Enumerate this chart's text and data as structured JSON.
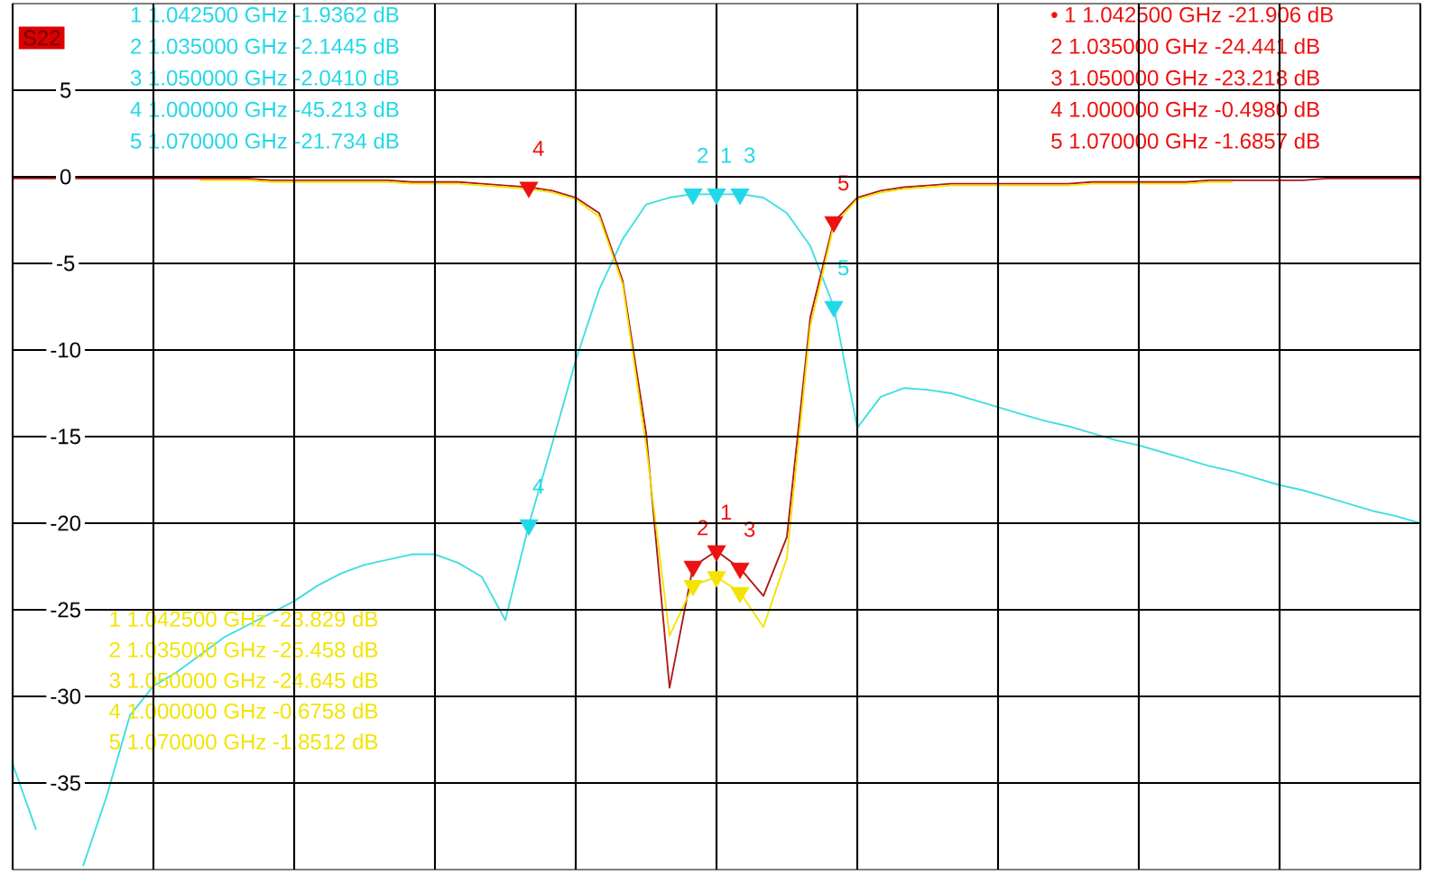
{
  "chart_data": {
    "type": "line",
    "title": "S22",
    "categories": [
      null,
      null,
      null,
      null,
      null,
      null,
      null,
      null,
      null,
      null,
      null,
      null,
      null,
      null,
      null,
      null,
      null,
      null,
      null,
      null,
      null,
      null,
      null,
      null,
      null,
      null,
      null,
      null,
      null,
      null,
      null,
      null,
      null,
      null,
      null,
      null,
      null,
      null,
      null,
      null,
      null,
      null,
      null,
      null,
      null,
      null,
      null,
      null,
      null,
      null,
      null,
      null,
      null,
      null,
      null,
      null,
      null,
      null,
      null,
      null,
      null
    ],
    "series": [
      {
        "color": "#40dede",
        "values": [
          -33.9,
          -37.7,
          null,
          -39.8,
          -35.8,
          -31.1,
          -29.4,
          -28.6,
          -27.6,
          -26.6,
          -25.9,
          -25.2,
          -24.5,
          -23.6,
          -22.9,
          -22.4,
          -22.1,
          -21.8,
          -21.8,
          -22.3,
          -23.1,
          -25.6,
          -20.1,
          -15.4,
          -10.6,
          -6.5,
          -3.6,
          -1.6,
          -1.2,
          -1.0,
          -1.0,
          -1.0,
          -1.2,
          -2.1,
          -4.0,
          -7.5,
          -14.5,
          -12.7,
          -12.2,
          -12.3,
          -12.5,
          -12.9,
          -13.3,
          -13.7,
          -14.1,
          -14.4,
          -14.8,
          -15.2,
          -15.5,
          -15.9,
          -16.3,
          -16.7,
          -17.0,
          -17.4,
          -17.8,
          -18.1,
          -18.5,
          -18.9,
          -19.3,
          -19.6,
          -20.0
        ]
      },
      {
        "color": "#b01818",
        "values": [
          -0.1,
          -0.1,
          -0.1,
          -0.1,
          -0.1,
          -0.1,
          -0.1,
          -0.1,
          -0.1,
          -0.1,
          -0.1,
          -0.2,
          -0.2,
          -0.2,
          -0.2,
          -0.2,
          -0.2,
          -0.3,
          -0.3,
          -0.3,
          -0.4,
          -0.5,
          -0.6,
          -0.8,
          -1.2,
          -2.1,
          -6.0,
          -14.8,
          -29.5,
          -22.5,
          -21.6,
          -22.6,
          -24.2,
          -20.8,
          -8.1,
          -2.6,
          -1.2,
          -0.8,
          -0.6,
          -0.5,
          -0.4,
          -0.4,
          -0.4,
          -0.4,
          -0.4,
          -0.4,
          -0.3,
          -0.3,
          -0.3,
          -0.3,
          -0.3,
          -0.2,
          -0.2,
          -0.2,
          -0.2,
          -0.2,
          -0.1,
          -0.1,
          -0.1,
          -0.1,
          -0.1
        ]
      },
      {
        "color": "#f2e400",
        "values": [
          null,
          null,
          null,
          null,
          null,
          null,
          null,
          null,
          -0.2,
          -0.2,
          -0.2,
          -0.3,
          -0.3,
          -0.3,
          -0.3,
          -0.3,
          -0.3,
          -0.4,
          -0.4,
          -0.4,
          -0.5,
          -0.6,
          -0.7,
          -0.9,
          -1.3,
          -2.3,
          -6.2,
          -15.5,
          -26.5,
          -23.6,
          -23.1,
          -24.0,
          -26.0,
          -22.0,
          -8.6,
          -2.8,
          -1.3,
          -0.9,
          -0.7,
          -0.6,
          -0.5,
          -0.5,
          -0.5,
          -0.5,
          -0.5,
          -0.5,
          -0.4,
          -0.4,
          -0.4,
          -0.4,
          -0.4,
          -0.3,
          -0.3,
          null,
          null,
          null,
          null,
          null,
          null,
          null,
          null
        ]
      },
      {
        "type": "scatter",
        "marker": "triangle",
        "color": "#22d8e8",
        "values": [
          null,
          null,
          null,
          null,
          null,
          null,
          null,
          null,
          null,
          null,
          null,
          null,
          null,
          null,
          null,
          null,
          null,
          null,
          null,
          null,
          null,
          null,
          -20.1,
          null,
          null,
          null,
          null,
          null,
          null,
          -1.0,
          -1.0,
          -1.0,
          null,
          null,
          null,
          -7.5,
          null,
          null,
          null,
          null,
          null,
          null,
          null,
          null,
          null,
          null,
          null,
          null,
          null,
          null,
          null,
          null,
          null,
          null,
          null,
          null,
          null,
          null,
          null,
          null,
          null
        ]
      },
      {
        "type": "scatter",
        "marker": "triangle",
        "color": "#ee1111",
        "values": [
          null,
          null,
          null,
          null,
          null,
          null,
          null,
          null,
          null,
          null,
          null,
          null,
          null,
          null,
          null,
          null,
          null,
          null,
          null,
          null,
          null,
          null,
          -0.6,
          null,
          null,
          null,
          null,
          null,
          null,
          -22.5,
          -21.6,
          -22.6,
          null,
          null,
          null,
          -2.6,
          null,
          null,
          null,
          null,
          null,
          null,
          null,
          null,
          null,
          null,
          null,
          null,
          null,
          null,
          null,
          null,
          null,
          null,
          null,
          null,
          null,
          null,
          null,
          null,
          null
        ]
      },
      {
        "type": "scatter",
        "marker": "triangle",
        "color": "#f2e400",
        "values": [
          null,
          null,
          null,
          null,
          null,
          null,
          null,
          null,
          null,
          null,
          null,
          null,
          null,
          null,
          null,
          null,
          null,
          null,
          null,
          null,
          null,
          null,
          null,
          null,
          null,
          null,
          null,
          null,
          null,
          -23.6,
          -23.1,
          -24.0,
          null,
          null,
          null,
          null,
          null,
          null,
          null,
          null,
          null,
          null,
          null,
          null,
          null,
          null,
          null,
          null,
          null,
          null,
          null,
          null,
          null,
          null,
          null,
          null,
          null,
          null,
          null,
          null,
          null
        ]
      }
    ],
    "ylim": [
      -40,
      10
    ],
    "yticks": [
      5,
      0,
      -5,
      -10,
      -15,
      -20,
      -25,
      -30,
      -35
    ],
    "tick_labels": "y",
    "grid": true,
    "annotations": [
      "1 1.042500 GHz -1.9362 dB",
      "2 1.035000 GHz -2.1445 dB",
      "3 1.050000 GHz -2.0410 dB",
      "4 1.000000 GHz -45.213 dB",
      "5 1.070000 GHz -21.734 dB",
      "• 1 1.042500 GHz -21.906 dB",
      "2 1.035000 GHz -24.441 dB",
      "3 1.050000 GHz -23.218 dB",
      "4 1.000000 GHz -0.4980 dB",
      "5 1.070000 GHz -1.6857 dB",
      "1 1.042500 GHz -23.829 dB",
      "2 1.035000 GHz -25.458 dB",
      "3 1.050000 GHz -24.645 dB",
      "4 1.000000 GHz -0.6758 dB",
      "5 1.070000 GHz -1.8512 dB",
      "4",
      "2",
      "1",
      "3",
      "5",
      "4",
      "2",
      "1",
      "3",
      "5"
    ]
  }
}
